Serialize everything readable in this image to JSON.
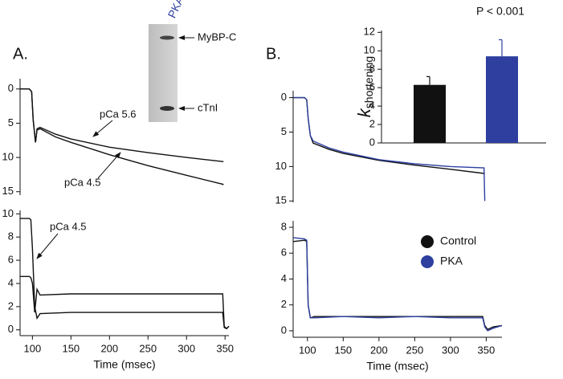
{
  "chart_data": [
    {
      "type": "line",
      "y_reversed": true,
      "x": [
        84,
        96,
        99,
        101,
        104,
        106,
        110,
        130,
        150,
        200,
        250,
        300,
        347,
        348
      ],
      "xlim": [
        84,
        355
      ],
      "ylim": [
        -1.5,
        15.5
      ],
      "yticks": [
        0,
        5,
        10,
        15
      ],
      "series": [
        {
          "name": "pCa 5.6",
          "color": "#111111",
          "values": [
            0,
            0,
            0.4,
            4.5,
            7.8,
            5.8,
            5.6,
            6.6,
            7.3,
            8.5,
            9.3,
            10.0,
            10.6,
            10.6
          ]
        },
        {
          "name": "pCa 4.5",
          "color": "#111111",
          "values": [
            0,
            0,
            0.4,
            4.5,
            7.8,
            6.0,
            5.8,
            7.0,
            7.8,
            9.6,
            11.2,
            12.6,
            13.9,
            14.0
          ]
        }
      ]
    },
    {
      "type": "line",
      "x": [
        84,
        96,
        98,
        100,
        103,
        106,
        110,
        150,
        200,
        250,
        300,
        347,
        349,
        352,
        355
      ],
      "xlim": [
        84,
        355
      ],
      "xticks": [
        100,
        150,
        200,
        250,
        300,
        350
      ],
      "xlabel": "Time (msec)",
      "ylim": [
        -0.5,
        10.3
      ],
      "yticks": [
        0,
        2,
        4,
        6,
        8,
        10
      ],
      "series": [
        {
          "name": "pCa 4.5",
          "color": "#111111",
          "values": [
            9.6,
            9.6,
            9.5,
            7,
            2,
            1,
            1.4,
            1.5,
            1.5,
            1.5,
            1.5,
            1.5,
            0.2,
            0.1,
            0.3
          ]
        },
        {
          "color": "#111111",
          "values": [
            4.6,
            4.6,
            4.5,
            4,
            1.5,
            3.5,
            3.0,
            3.1,
            3.1,
            3.1,
            3.1,
            3.1,
            0.3,
            0.1,
            0.3
          ]
        }
      ]
    },
    {
      "type": "line",
      "y_reversed": true,
      "x": [
        80,
        96,
        99,
        101,
        104,
        108,
        130,
        150,
        200,
        250,
        300,
        347,
        348
      ],
      "xlim": [
        80,
        372
      ],
      "ylim": [
        -1,
        15.2
      ],
      "yticks": [
        0,
        5,
        10,
        15
      ],
      "series": [
        {
          "color": "#111111",
          "values": [
            0,
            0,
            0.3,
            3,
            5.5,
            6.6,
            7.5,
            8.1,
            9.1,
            9.8,
            10.4,
            11.0,
            11.0
          ]
        },
        {
          "color": "#2e3fa0",
          "values": [
            0,
            0,
            0.3,
            3,
            5.5,
            6.3,
            7.3,
            7.9,
            9.0,
            9.6,
            10.0,
            10.2,
            15
          ]
        }
      ]
    },
    {
      "type": "line",
      "legend": true,
      "x": [
        80,
        96,
        99,
        101,
        104,
        110,
        150,
        200,
        250,
        300,
        345,
        348,
        352,
        360,
        372
      ],
      "xlim": [
        80,
        372
      ],
      "xticks": [
        100,
        150,
        200,
        250,
        300,
        350
      ],
      "xlabel": "Time (msec)",
      "ylim": [
        -0.5,
        8.5
      ],
      "yticks": [
        0,
        2,
        4,
        6,
        8
      ],
      "series": [
        {
          "name": "Control",
          "color": "#111111",
          "values": [
            6.9,
            7,
            6.9,
            2,
            1,
            1.1,
            1.1,
            1.1,
            1.1,
            1.1,
            1.1,
            0.4,
            0.1,
            0.3,
            0.4
          ]
        },
        {
          "name": "PKA",
          "color": "#2e3fa0",
          "values": [
            7.2,
            7.1,
            7.0,
            2,
            1,
            1.0,
            1.1,
            1.0,
            1.1,
            1.0,
            1.0,
            0.3,
            0,
            0.2,
            0.4
          ]
        }
      ]
    },
    {
      "type": "bar",
      "ylabel": "k",
      "ylabel_sub": "shortening",
      "annotation": "P < 0.001",
      "categories": [
        null,
        null
      ],
      "values": [
        6.3,
        9.4
      ],
      "errors": [
        0.9,
        1.8
      ],
      "colors": [
        "#111111",
        "#2e3fa0"
      ],
      "ylim": [
        0,
        12.2
      ],
      "yticks": [
        0,
        2,
        4,
        6,
        8,
        10,
        12
      ]
    }
  ],
  "figure": {
    "panel_labels": [
      "A.",
      "B."
    ],
    "gel": {
      "lane_label": "PKA",
      "bands": [
        "MyBP-C",
        "cTnI"
      ]
    }
  }
}
